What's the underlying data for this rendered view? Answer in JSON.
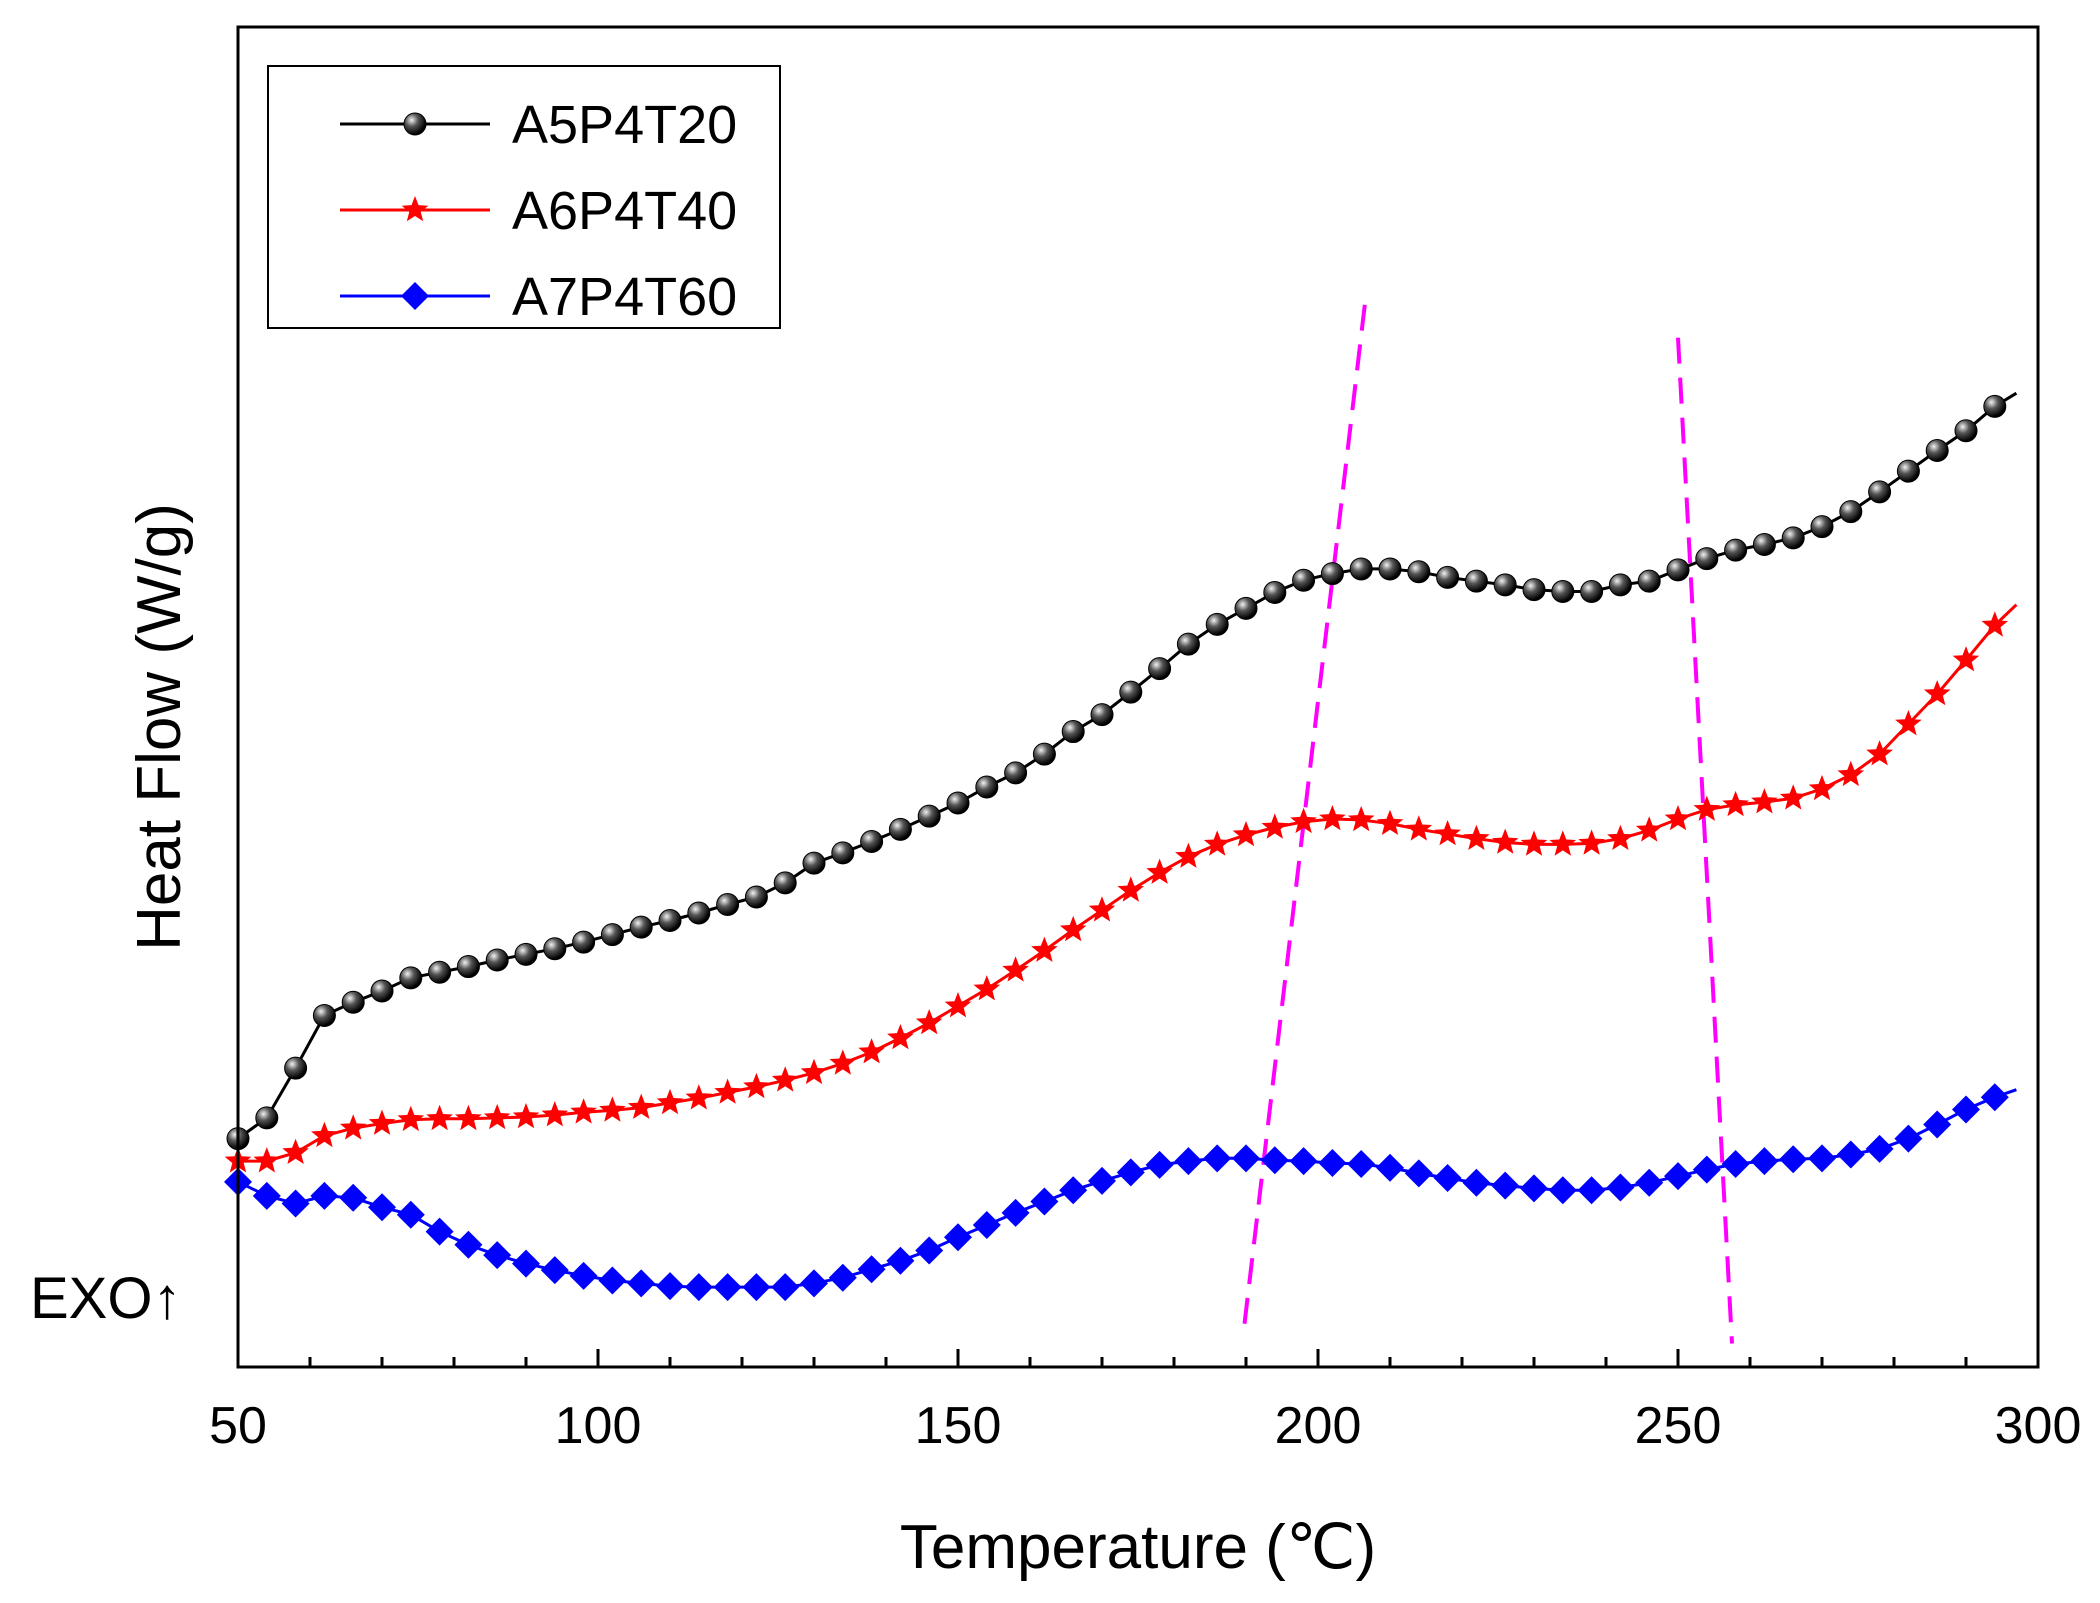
{
  "chart_data": {
    "type": "line",
    "title": "",
    "xlabel": "Temperature (℃)",
    "ylabel": "Heat Flow (W/g)",
    "xlim": [
      50,
      300
    ],
    "ylim": [
      0,
      100
    ],
    "x_ticks": [
      "50",
      "100",
      "150",
      "200",
      "250",
      "300"
    ],
    "y_ticks_shown": false,
    "annotation": "EXO↑",
    "legend_position": "top-left",
    "grid": false,
    "series": [
      {
        "name": "A5P4T20",
        "color": "#000000",
        "marker": "sphere",
        "x": [
          50,
          54,
          58,
          62,
          66,
          70,
          74,
          78,
          82,
          86,
          90,
          94,
          98,
          102,
          106,
          110,
          114,
          118,
          122,
          126,
          130,
          134,
          138,
          142,
          146,
          150,
          154,
          158,
          162,
          166,
          170,
          174,
          178,
          182,
          186,
          190,
          194,
          198,
          202,
          206,
          210,
          214,
          218,
          222,
          226,
          230,
          234,
          238,
          242,
          246,
          250,
          254,
          258,
          262,
          266,
          270,
          274,
          278,
          282,
          286,
          290,
          294,
          297
        ],
        "y": [
          24.3,
          26.5,
          31.8,
          37.4,
          38.8,
          40.0,
          41.4,
          42.0,
          42.6,
          43.3,
          43.9,
          44.5,
          45.2,
          46.0,
          46.8,
          47.5,
          48.3,
          49.2,
          50.0,
          51.5,
          53.6,
          54.7,
          55.9,
          57.2,
          58.6,
          60.0,
          61.7,
          63.2,
          65.2,
          67.6,
          69.4,
          71.8,
          74.3,
          76.9,
          79.0,
          80.7,
          82.4,
          83.7,
          84.4,
          84.9,
          84.9,
          84.6,
          84.0,
          83.6,
          83.2,
          82.7,
          82.5,
          82.5,
          83.2,
          83.6,
          84.8,
          86.0,
          86.9,
          87.5,
          88.2,
          89.4,
          91.0,
          93.1,
          95.3,
          97.5,
          99.6,
          102.2,
          103.6
        ]
      },
      {
        "name": "A6P4T40",
        "color": "#ff0000",
        "marker": "star",
        "x": [
          50,
          54,
          58,
          62,
          66,
          70,
          74,
          78,
          82,
          86,
          90,
          94,
          98,
          102,
          106,
          110,
          114,
          118,
          122,
          126,
          130,
          134,
          138,
          142,
          146,
          150,
          154,
          158,
          162,
          166,
          170,
          174,
          178,
          182,
          186,
          190,
          194,
          198,
          202,
          206,
          210,
          214,
          218,
          222,
          226,
          230,
          234,
          238,
          242,
          246,
          250,
          254,
          258,
          262,
          266,
          270,
          274,
          278,
          282,
          286,
          290,
          294,
          297
        ],
        "y": [
          21.9,
          21.9,
          22.8,
          24.6,
          25.4,
          25.9,
          26.3,
          26.4,
          26.4,
          26.5,
          26.6,
          26.8,
          27.1,
          27.3,
          27.6,
          28.1,
          28.6,
          29.2,
          29.8,
          30.5,
          31.3,
          32.3,
          33.5,
          35.0,
          36.6,
          38.4,
          40.2,
          42.2,
          44.3,
          46.5,
          48.6,
          50.7,
          52.6,
          54.3,
          55.6,
          56.6,
          57.4,
          58.0,
          58.3,
          58.2,
          57.8,
          57.2,
          56.7,
          56.2,
          55.8,
          55.6,
          55.6,
          55.7,
          56.2,
          57.1,
          58.3,
          59.3,
          59.8,
          60.1,
          60.5,
          61.5,
          63.0,
          65.2,
          68.4,
          71.6,
          75.2,
          78.9,
          81.1
        ]
      },
      {
        "name": "A7P4T60",
        "color": "#0000ff",
        "marker": "diamond",
        "x": [
          50,
          54,
          58,
          62,
          66,
          70,
          74,
          78,
          82,
          86,
          90,
          94,
          98,
          102,
          106,
          110,
          114,
          118,
          122,
          126,
          130,
          134,
          138,
          142,
          146,
          150,
          154,
          158,
          162,
          166,
          170,
          174,
          178,
          182,
          186,
          190,
          194,
          198,
          202,
          206,
          210,
          214,
          218,
          222,
          226,
          230,
          234,
          238,
          242,
          246,
          250,
          254,
          258,
          262,
          266,
          270,
          274,
          278,
          282,
          286,
          290,
          294,
          297
        ],
        "y": [
          19.7,
          18.2,
          17.4,
          18.2,
          18.0,
          17.0,
          16.2,
          14.4,
          13.0,
          11.9,
          11.0,
          10.3,
          9.7,
          9.2,
          8.9,
          8.6,
          8.5,
          8.5,
          8.5,
          8.5,
          8.9,
          9.5,
          10.4,
          11.3,
          12.4,
          13.8,
          15.1,
          16.4,
          17.6,
          18.8,
          19.8,
          20.7,
          21.5,
          21.9,
          22.2,
          22.2,
          22.0,
          21.9,
          21.7,
          21.6,
          21.2,
          20.6,
          20.1,
          19.6,
          19.3,
          19.0,
          18.8,
          18.8,
          19.1,
          19.6,
          20.3,
          21.0,
          21.6,
          21.9,
          22.1,
          22.2,
          22.6,
          23.2,
          24.3,
          25.8,
          27.4,
          28.7,
          29.5
        ]
      }
    ],
    "guide_lines": [
      {
        "style": "dashed",
        "color": "#ff00ff",
        "points": [
          [
            206.5,
            113
          ],
          [
            189.7,
            4
          ]
        ]
      },
      {
        "style": "dashed",
        "color": "#ff00ff",
        "points": [
          [
            250.0,
            109.5
          ],
          [
            257.5,
            2.5
          ]
        ]
      }
    ]
  }
}
